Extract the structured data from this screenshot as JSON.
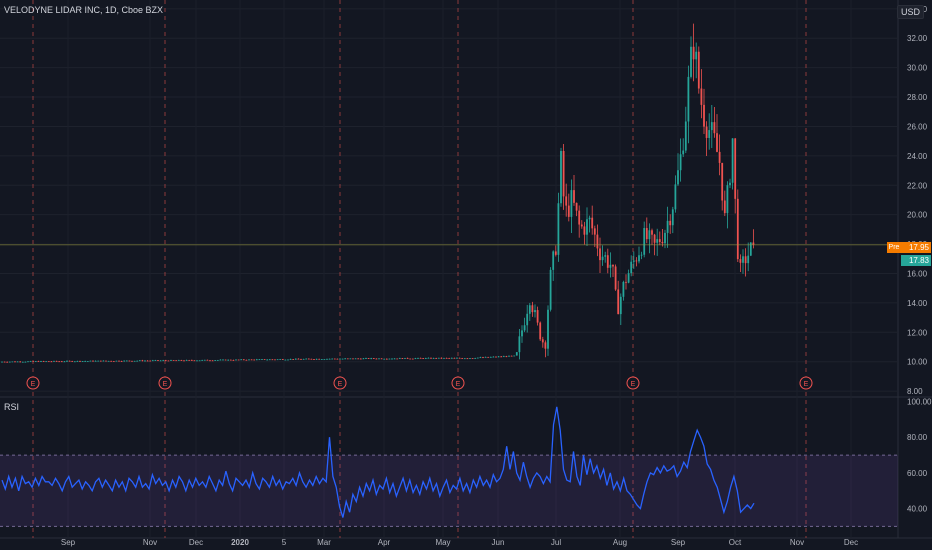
{
  "header": {
    "symbol_line": "VELODYNE LIDAR INC, 1D, Cboe BZX",
    "currency": "USD"
  },
  "tags": {
    "pre_label": "Pre",
    "last_price": "17.95",
    "close_price": "17.83"
  },
  "rsi_panel": {
    "label": "RSI"
  },
  "colors": {
    "background": "#131722",
    "up": "#26a69a",
    "down": "#ef5350",
    "rsi_line": "#2962ff",
    "rsi_band": "#7e57c2",
    "earnings_marker": "#ef5350",
    "price_line": "#26a69a"
  },
  "chart_data": [
    {
      "type": "candlestick",
      "title": "",
      "y_axis_ticks": [
        "8.00",
        "10.00",
        "12.00",
        "14.00",
        "16.00",
        "18.00",
        "20.00",
        "22.00",
        "24.00",
        "26.00",
        "28.00",
        "30.00",
        "32.00",
        "34.00"
      ],
      "ylim": [
        7.6,
        34.6
      ],
      "earnings_marker_label": "E",
      "earnings_marker_dates": [
        "Sep",
        "Nov",
        "Mar",
        "May",
        "Aug",
        "Oct"
      ],
      "price_approx": {
        "pre_june_level": 10.0,
        "june_range": [
          10.5,
          16.0
        ],
        "july_peak": 24.0,
        "august_low": 13.0,
        "september_peak": 32.5,
        "october_low": 15.5,
        "last_price": 17.95,
        "last_close": 17.83
      }
    },
    {
      "type": "line",
      "series_name": "RSI",
      "y_axis_ticks": [
        "40.00",
        "60.00",
        "80.00",
        "100.00"
      ],
      "ylim": [
        28,
        102
      ],
      "band": [
        30,
        70
      ],
      "values": [
        56,
        51,
        58,
        52,
        57,
        50,
        58,
        54,
        55,
        52,
        57,
        53,
        58,
        55,
        55,
        53,
        57,
        54,
        50,
        55,
        58,
        52,
        54,
        56,
        51,
        55,
        53,
        50,
        55,
        57,
        52,
        56,
        53,
        50,
        56,
        52,
        55,
        50,
        57,
        55,
        52,
        58,
        52,
        54,
        51,
        59,
        54,
        57,
        53,
        55,
        50,
        56,
        52,
        58,
        55,
        50,
        56,
        52,
        57,
        53,
        55,
        52,
        58,
        54,
        50,
        56,
        53,
        61,
        54,
        50,
        57,
        55,
        53,
        56,
        52,
        60,
        54,
        51,
        57,
        55,
        52,
        58,
        53,
        56,
        51,
        55,
        54,
        57,
        53,
        60,
        55,
        52,
        56,
        53,
        58,
        54,
        57,
        55,
        80,
        58,
        52,
        41,
        35,
        44,
        38,
        48,
        44,
        52,
        47,
        54,
        50,
        56,
        48,
        53,
        51,
        57,
        49,
        54,
        47,
        52,
        57,
        50,
        56,
        49,
        53,
        48,
        55,
        51,
        57,
        50,
        54,
        47,
        52,
        56,
        49,
        53,
        51,
        57,
        50,
        54,
        49,
        56,
        52,
        58,
        53,
        56,
        52,
        59,
        55,
        57,
        62,
        75,
        62,
        72,
        60,
        56,
        66,
        58,
        52,
        57,
        60,
        58,
        54,
        58,
        55,
        87,
        97,
        84,
        62,
        56,
        55,
        72,
        58,
        53,
        70,
        59,
        68,
        60,
        64,
        57,
        62,
        53,
        60,
        51,
        55,
        50,
        57,
        50,
        48,
        45,
        42,
        40,
        48,
        55,
        60,
        59,
        63,
        60,
        64,
        61,
        62,
        64,
        58,
        61,
        66,
        63,
        72,
        78,
        84,
        80,
        75,
        65,
        62,
        56,
        52,
        45,
        38,
        44,
        52,
        58,
        50,
        38,
        40,
        42,
        40,
        43
      ]
    }
  ],
  "x_axis_labels": [
    "Sep",
    "Nov",
    "Dec",
    "2020",
    "5",
    "Mar",
    "Apr",
    "May",
    "Jun",
    "Jul",
    "Aug",
    "Sep",
    "Oct",
    "Nov",
    "Dec"
  ]
}
